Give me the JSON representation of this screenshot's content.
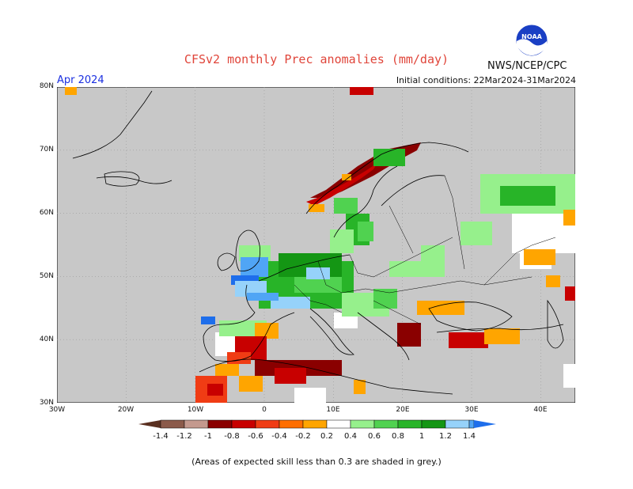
{
  "header": {
    "title": "CFSv2 monthly Prec anomalies (mm/day)",
    "agency": "NWS/NCEP/CPC",
    "logo_text": "NOAA",
    "month": "Apr 2024",
    "initial_conditions": "Initial conditions: 22Mar2024-31Mar2024"
  },
  "map": {
    "lat_labels": [
      "80N",
      "70N",
      "60N",
      "50N",
      "40N",
      "30N"
    ],
    "lon_labels": [
      "30W",
      "20W",
      "10W",
      "0",
      "10E",
      "20E",
      "30E",
      "40E"
    ],
    "lon_range": [
      -30,
      45
    ],
    "lat_range": [
      30,
      80
    ],
    "background_color": "#c8c8c8"
  },
  "colorbar": {
    "labels": [
      "-1.4",
      "-1.2",
      "-1",
      "-0.8",
      "-0.6",
      "-0.4",
      "-0.2",
      "0.2",
      "0.4",
      "0.6",
      "0.8",
      "1",
      "1.2",
      "1.4"
    ],
    "colors": [
      "#8b5a4a",
      "#c4998e",
      "#8a0000",
      "#c80000",
      "#f03c14",
      "#ff6e00",
      "#ffa500",
      "#ffffff",
      "#96f08c",
      "#50d250",
      "#28b428",
      "#149614",
      "#96d2fa",
      "#50a5f5",
      "#1e6eeb"
    ]
  },
  "footnote": "(Areas of expected skill less than 0.3 are shaded in grey.)"
}
